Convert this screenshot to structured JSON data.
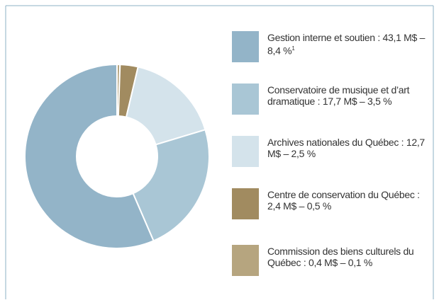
{
  "chart_data": {
    "type": "donut",
    "categories": [
      "Gestion interne et soutien :",
      "Conservatoire de musique et d’art dramatique :",
      "Archives nationales du Québec :",
      "Centre de conservation du Québec :",
      "Commission des biens culturels du Québec :"
    ],
    "values": [
      43.1,
      17.7,
      12.7,
      2.4,
      0.4
    ],
    "value_labels": [
      "43,1 M$",
      "17,7 M$",
      "12,7 M$",
      "2,4 M$",
      "0,4 M$"
    ],
    "percents": [
      8.4,
      3.5,
      2.5,
      0.5,
      0.1
    ],
    "percent_labels": [
      "8,4 %",
      "3,5 %",
      "2,5 %",
      "0,5 %",
      "0,1 %"
    ],
    "separator": "–",
    "footnote_marker": "1",
    "colors": [
      "#93b4c8",
      "#a9c6d5",
      "#d4e3eb",
      "#a18b60",
      "#b6a57f"
    ]
  }
}
